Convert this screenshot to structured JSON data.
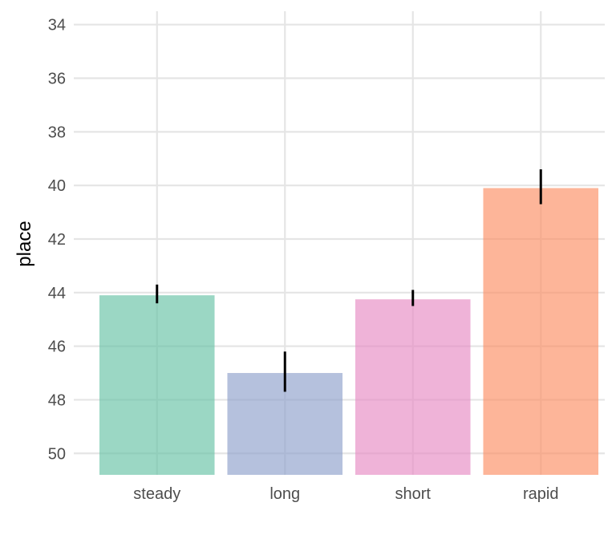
{
  "chart_data": {
    "type": "bar",
    "title": "",
    "xlabel": "",
    "ylabel": "place",
    "y_reversed": true,
    "ylim": [
      33.5,
      50.8
    ],
    "yticks": [
      34,
      36,
      38,
      40,
      42,
      44,
      46,
      48,
      50
    ],
    "grid": true,
    "legend": "none",
    "categories": [
      "steady",
      "long",
      "short",
      "rapid"
    ],
    "values": [
      44.1,
      47.0,
      44.25,
      40.1
    ],
    "error": [
      [
        43.7,
        44.4
      ],
      [
        46.2,
        47.7
      ],
      [
        43.9,
        44.5
      ],
      [
        39.4,
        40.7
      ]
    ],
    "colors": [
      "#66c2a5",
      "#8da0cb",
      "#e78ac3",
      "#fc8d62"
    ],
    "bar_opacity": 0.65,
    "errorbar_color": "#000000"
  }
}
